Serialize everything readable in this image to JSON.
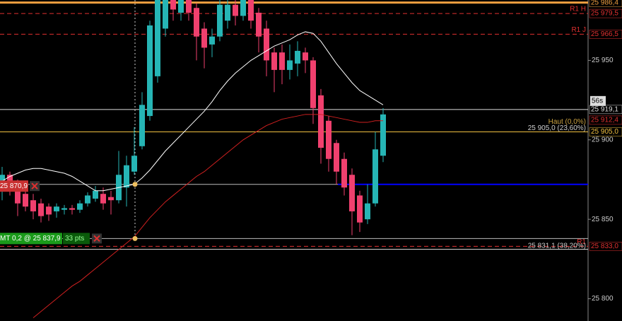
{
  "chart_data": {
    "type": "candlestick",
    "ylim": [
      25786,
      25988
    ],
    "yticks": [
      {
        "value": 25950,
        "label": "25 950"
      },
      {
        "value": 25900,
        "label": "25 900"
      },
      {
        "value": 25850,
        "label": "25 850"
      },
      {
        "value": 25800,
        "label": "25 800"
      }
    ],
    "up_color": "#26b5b5",
    "down_color": "#f0406e",
    "open": [
      25868,
      25878,
      25872,
      25866,
      25862,
      25860,
      25858,
      25855,
      25856,
      25857,
      25856,
      25860,
      25863,
      25866,
      25864,
      25862,
      25870,
      25880,
      25896,
      25915,
      25940,
      25970,
      25990,
      25980,
      25988,
      25983,
      25970,
      25960,
      25965,
      25975,
      25985,
      25978,
      25988,
      25980,
      25970,
      25955,
      25955,
      25944,
      25948,
      25955,
      25950,
      25928,
      25912,
      25898,
      25888,
      25878,
      25865,
      25850,
      25860,
      25890
    ],
    "high": [
      25883,
      25880,
      25875,
      25870,
      25866,
      25863,
      25860,
      25860,
      25859,
      25859,
      25862,
      25867,
      25871,
      25870,
      25868,
      25893,
      25890,
      25908,
      25930,
      25975,
      25990,
      25990,
      25990,
      25990,
      25990,
      25986,
      25974,
      25970,
      25988,
      25988,
      25990,
      25990,
      25990,
      25983,
      25975,
      25958,
      25960,
      25960,
      25962,
      25958,
      25952,
      25932,
      25915,
      25900,
      25892,
      25882,
      25868,
      25872,
      25905,
      25920
    ],
    "low": [
      25862,
      25865,
      25852,
      25855,
      25850,
      25848,
      25849,
      25851,
      25853,
      25853,
      25854,
      25858,
      25861,
      25856,
      25853,
      25860,
      25858,
      25878,
      25894,
      25912,
      25936,
      25965,
      25975,
      25975,
      25975,
      25950,
      25945,
      25952,
      25962,
      25970,
      25972,
      25975,
      25970,
      25955,
      25940,
      25930,
      25935,
      25938,
      25940,
      25942,
      25910,
      25885,
      25880,
      25872,
      25865,
      25840,
      25842,
      25847,
      25858,
      25886
    ],
    "close": [
      25878,
      25870,
      25860,
      25858,
      25855,
      25852,
      25853,
      25858,
      25857,
      25856,
      25860,
      25865,
      25868,
      25860,
      25862,
      25878,
      25884,
      25890,
      25922,
      25972,
      25990,
      25990,
      25982,
      25990,
      25980,
      25965,
      25958,
      25965,
      25985,
      25985,
      25978,
      25988,
      25975,
      25965,
      25950,
      25944,
      25944,
      25950,
      25956,
      25950,
      25920,
      25895,
      25888,
      25880,
      25870,
      25855,
      25848,
      25860,
      25894,
      25916
    ],
    "series": [
      {
        "color": "#ffffff",
        "values": [
          25874,
          25877,
          25879,
          25881,
          25882,
          25882,
          25881,
          25880,
          25879,
          25877,
          25874,
          25871,
          25868,
          25868,
          25869,
          25870,
          25871,
          25872,
          25876,
          25881,
          25887,
          25893,
          25898,
          25903,
          25908,
          25913,
          25918,
          25924,
          25931,
          25937,
          25942,
          25946,
          25950,
          25953,
          25956,
          25959,
          25961,
          25963,
          25966,
          25968,
          25967,
          25962,
          25955,
          25948,
          25942,
          25936,
          25931,
          25928,
          25925,
          25922
        ]
      },
      {
        "color": "#d02020",
        "values": [
          null,
          null,
          null,
          null,
          25788,
          25792,
          25796,
          25800,
          25804,
          25808,
          25811,
          25815,
          25819,
          25823,
          25827,
          25831,
          25835,
          25839,
          25845,
          25851,
          25856,
          25861,
          25865,
          25869,
          25873,
          25877,
          25880,
          25884,
          25888,
          25892,
          25896,
          25900,
          25903,
          25906,
          25909,
          25911,
          25913,
          25914,
          25915,
          25916,
          25916,
          25916,
          25915,
          25914,
          25913,
          25912,
          25911,
          25911,
          25912,
          25912
        ]
      }
    ],
    "levels": [
      {
        "value": 25986.4,
        "label": "25 986,4",
        "color": "#f0a040",
        "style": "thick"
      },
      {
        "value": 25979.5,
        "label": "25 979,5",
        "name": "R1 H",
        "color": "#e03030",
        "style": "dashed"
      },
      {
        "value": 25966.5,
        "label": "25 966,5",
        "name": "R1 J",
        "color": "#e03030",
        "style": "dashed"
      },
      {
        "value": 25919.1,
        "label": "25 919,1",
        "color": "#dddddd",
        "style": "solid"
      },
      {
        "value": 25912.4,
        "label": "25 912,4",
        "color": "#e03030",
        "style": "none"
      },
      {
        "value": 25905.0,
        "label": "25 905,0",
        "color": "#f0c040",
        "style": "solid"
      },
      {
        "value": 25833.0,
        "label": "25 833,0",
        "name": "R1",
        "color": "#e03030",
        "style": "dashed"
      }
    ],
    "lines": [
      {
        "value": 25872,
        "color": "#bbbbbb"
      },
      {
        "value": 25837.9,
        "color": "#bbbbbb"
      },
      {
        "value": 25831.1,
        "color": "#dddddd"
      }
    ],
    "blue_line": {
      "value": 25872,
      "color": "#0000ff"
    },
    "orders": [
      {
        "price": 25870.9,
        "label": "25 870,9",
        "color": "#c83030"
      },
      {
        "price": 25837.9,
        "label": "MT 0,2 @ 25 837,9",
        "extra": "33 pts",
        "color": "#1a9a1a"
      }
    ],
    "annotations": [
      {
        "value": 25905.0,
        "text": "25 905,0 (23,60%)"
      },
      {
        "value": 25909,
        "text": "Haut (0,0%)"
      },
      {
        "value": 25831.1,
        "text": "25 831,1 (38,20%)"
      }
    ],
    "timer": {
      "value": 25924,
      "text": "56s"
    }
  }
}
